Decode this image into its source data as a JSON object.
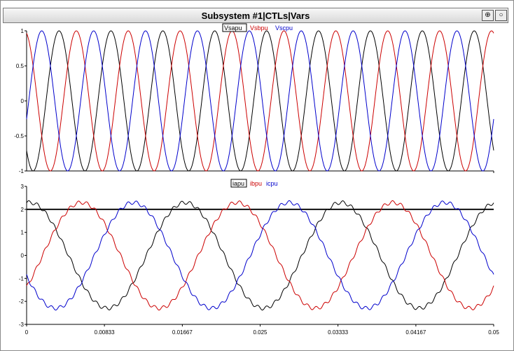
{
  "window": {
    "title": "Subsystem #1|CTLs|Vars"
  },
  "icons": {
    "zoom": "zoom-icon",
    "options": "circle-icon"
  },
  "colors": {
    "black": "#000000",
    "red": "#cc0000",
    "blue": "#0000cc"
  },
  "chart_data": [
    {
      "type": "line",
      "title": "",
      "xlabel": "",
      "ylabel": "",
      "xlim": [
        0,
        0.05
      ],
      "ylim": [
        -1,
        1
      ],
      "yticks": [
        -1,
        -0.5,
        0,
        0.5,
        1
      ],
      "ytick_labels": [
        "-1",
        "-0.5",
        "0",
        "0.5",
        "1"
      ],
      "grid": false,
      "legend_position": "top-center",
      "frequency_hz": 180,
      "series": [
        {
          "name": "Vsapu",
          "color": "#000000",
          "amplitude": 1,
          "phase_deg": -135
        },
        {
          "name": "Vsbpu",
          "color": "#cc0000",
          "amplitude": 1,
          "phase_deg": 105
        },
        {
          "name": "Vscpu",
          "color": "#0000cc",
          "amplitude": 1,
          "phase_deg": -15
        }
      ]
    },
    {
      "type": "line",
      "title": "",
      "xlabel": "",
      "ylabel": "",
      "xlim": [
        0,
        0.05
      ],
      "ylim": [
        -3,
        3
      ],
      "yticks": [
        -3,
        -2,
        -1,
        0,
        1,
        2,
        3
      ],
      "ytick_labels": [
        "-3",
        "-2",
        "-1",
        "0",
        "1",
        "2",
        "3"
      ],
      "xticks": [
        0,
        0.00833,
        0.01667,
        0.025,
        0.03333,
        0.04167,
        0.05
      ],
      "xtick_labels": [
        "0",
        "0.00833",
        "0.01667",
        "0.025",
        "0.03333",
        "0.04167",
        "0.05"
      ],
      "grid": false,
      "legend_position": "top-center",
      "frequency_hz": 60,
      "reference_line_y": 2,
      "series": [
        {
          "name": "iapu",
          "color": "#000000",
          "amplitude": 2.3,
          "phase_deg": 83
        },
        {
          "name": "ibpu",
          "color": "#cc0000",
          "amplitude": 2.3,
          "phase_deg": -37
        },
        {
          "name": "icpu",
          "color": "#0000cc",
          "amplitude": 2.3,
          "phase_deg": -157
        }
      ]
    }
  ]
}
